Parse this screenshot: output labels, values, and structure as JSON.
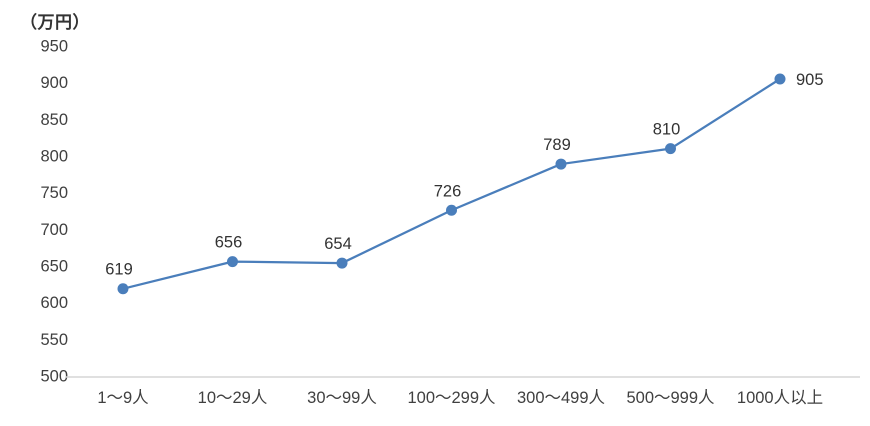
{
  "chart_data": {
    "type": "line",
    "title": "",
    "unit_label": "（万円）",
    "xlabel": "",
    "ylabel": "（万円）",
    "categories": [
      "1〜9人",
      "10〜29人",
      "30〜99人",
      "100〜299人",
      "300〜499人",
      "500〜999人",
      "1000人以上"
    ],
    "values": [
      619,
      656,
      654,
      726,
      789,
      810,
      905
    ],
    "ylim": [
      500,
      950
    ],
    "ytick_step": 50,
    "grid": false,
    "legend": "none",
    "colors": {
      "line": "#4a7ebb",
      "marker": "#4a7ebb",
      "axis_line": "#d6d6d6",
      "tick_text": "#404040",
      "data_label_text": "#333333"
    }
  }
}
